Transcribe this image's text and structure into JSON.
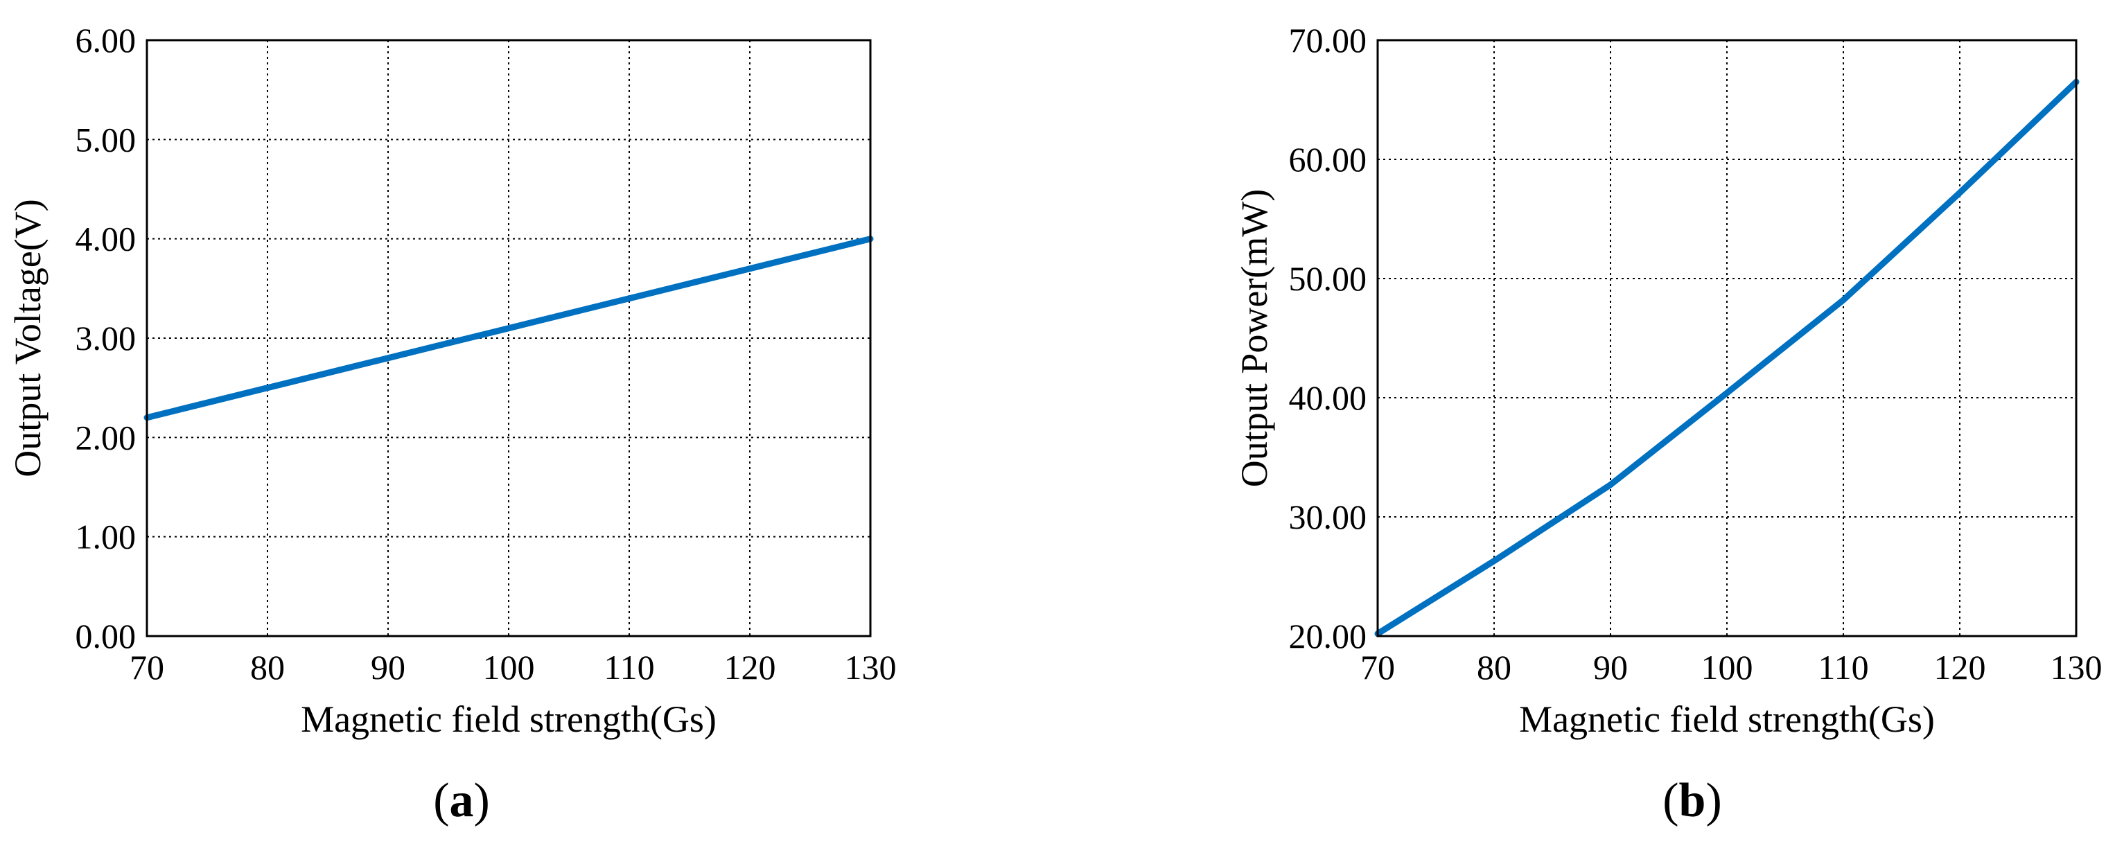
{
  "colors": {
    "series": "#0070c0"
  },
  "chart_data": [
    {
      "type": "line",
      "panel_label": "a",
      "xlabel": "Magnetic field strength(Gs)",
      "ylabel": "Output Voltage(V)",
      "xlim": [
        70,
        130
      ],
      "ylim": [
        0,
        6
      ],
      "xticks": [
        70,
        80,
        90,
        100,
        110,
        120,
        130
      ],
      "yticks": [
        0,
        1,
        2,
        3,
        4,
        5,
        6
      ],
      "xtick_labels": [
        "70",
        "80",
        "90",
        "100",
        "110",
        "120",
        "130"
      ],
      "ytick_labels": [
        "0.00",
        "1.00",
        "2.00",
        "3.00",
        "4.00",
        "5.00",
        "6.00"
      ],
      "grid": true,
      "series": [
        {
          "x": [
            70,
            80,
            90,
            100,
            110,
            120,
            130
          ],
          "y": [
            2.2,
            2.5,
            2.8,
            3.1,
            3.4,
            3.7,
            4.0
          ]
        }
      ]
    },
    {
      "type": "line",
      "panel_label": "b",
      "xlabel": "Magnetic field strength(Gs)",
      "ylabel": "Output Power(mW)",
      "xlim": [
        70,
        130
      ],
      "ylim": [
        20,
        70
      ],
      "xticks": [
        70,
        80,
        90,
        100,
        110,
        120,
        130
      ],
      "yticks": [
        20,
        30,
        40,
        50,
        60,
        70
      ],
      "xtick_labels": [
        "70",
        "80",
        "90",
        "100",
        "110",
        "120",
        "130"
      ],
      "ytick_labels": [
        "20.00",
        "30.00",
        "40.00",
        "50.00",
        "60.00",
        "70.00"
      ],
      "grid": true,
      "series": [
        {
          "x": [
            70,
            80,
            90,
            100,
            110,
            120,
            130
          ],
          "y": [
            20.2,
            26.3,
            32.7,
            40.4,
            48.2,
            57.2,
            66.5
          ]
        }
      ]
    }
  ]
}
